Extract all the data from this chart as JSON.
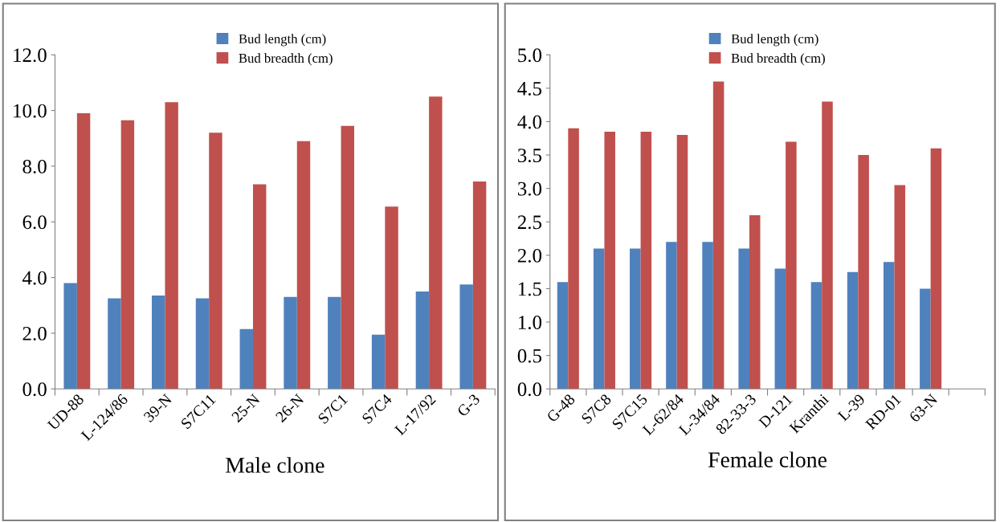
{
  "chart_data": [
    {
      "type": "bar",
      "xlabel": "Male clone",
      "categories": [
        "UD-88",
        "L-124/86",
        "39-N",
        "S7C11",
        "25-N",
        "26-N",
        "S7C1",
        "S7C4",
        "L-17/92",
        "G-3"
      ],
      "series": [
        {
          "name": "Bud length (cm)",
          "color": "#4f81bd",
          "values": [
            3.8,
            3.25,
            3.35,
            3.25,
            2.15,
            3.3,
            3.3,
            1.95,
            3.5,
            3.75
          ]
        },
        {
          "name": "Bud breadth (cm)",
          "color": "#c0504d",
          "values": [
            9.9,
            9.65,
            10.3,
            9.2,
            7.35,
            8.9,
            9.45,
            6.55,
            10.5,
            7.45
          ]
        }
      ],
      "ylim": [
        0,
        12
      ],
      "yticks": [
        {
          "value": 0,
          "label": "0.0"
        },
        {
          "value": 2,
          "label": "2.0"
        },
        {
          "value": 4,
          "label": "4.0"
        },
        {
          "value": 6,
          "label": "6.0"
        },
        {
          "value": 8,
          "label": "8.0"
        },
        {
          "value": 10,
          "label": "10.0"
        },
        {
          "value": 12,
          "label": "12.0"
        }
      ],
      "grid": false,
      "legend": "top"
    },
    {
      "type": "bar",
      "xlabel": "Female clone",
      "categories": [
        "G-48",
        "S7C8",
        "S7C15",
        "L-62/84",
        "L-34/84",
        "82-33-3",
        "D-121",
        "Kranthi",
        "L-39",
        "RD-01",
        "63-N",
        null
      ],
      "series": [
        {
          "name": "Bud length (cm)",
          "color": "#4f81bd",
          "values": [
            1.6,
            2.1,
            2.1,
            2.2,
            2.2,
            2.1,
            1.8,
            1.6,
            1.75,
            1.9,
            1.5,
            null
          ]
        },
        {
          "name": "Bud breadth (cm)",
          "color": "#c0504d",
          "values": [
            3.9,
            3.85,
            3.85,
            3.8,
            4.6,
            2.6,
            3.7,
            4.3,
            3.5,
            3.05,
            3.6,
            null
          ]
        }
      ],
      "ylim": [
        0,
        5
      ],
      "yticks": [
        {
          "value": 0,
          "label": "0.0"
        },
        {
          "value": 0.5,
          "label": "0.5"
        },
        {
          "value": 1,
          "label": "1.0"
        },
        {
          "value": 1.5,
          "label": "1.5"
        },
        {
          "value": 2,
          "label": "2.0"
        },
        {
          "value": 2.5,
          "label": "2.5"
        },
        {
          "value": 3,
          "label": "3.0"
        },
        {
          "value": 3.5,
          "label": "3.5"
        },
        {
          "value": 4,
          "label": "4.0"
        },
        {
          "value": 4.5,
          "label": "4.5"
        },
        {
          "value": 5,
          "label": "5.0"
        }
      ],
      "grid": false,
      "legend": "top"
    }
  ]
}
